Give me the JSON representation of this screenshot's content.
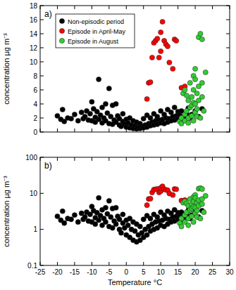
{
  "chart_data": [
    {
      "type": "scatter",
      "title": "a)",
      "y_label": "concentration µg m⁻³",
      "marker": "circle",
      "legend": "upper left",
      "tick_labels": "y",
      "xlim": [
        -25,
        30
      ],
      "xticks": [
        -25,
        -20,
        -15,
        -10,
        -5,
        0,
        5,
        10,
        15,
        20,
        25,
        30
      ],
      "ylim": [
        0,
        18
      ],
      "yticks": [
        0,
        2,
        4,
        6,
        8,
        10,
        12,
        14,
        16,
        18
      ],
      "series": [
        {
          "name": "Non-episodic period",
          "color": "#000000",
          "x": [
            -20,
            -19,
            -18.5,
            -18,
            -17,
            -16,
            -15,
            -14,
            -13,
            -12.5,
            -12,
            -11.5,
            -11,
            -10.5,
            -10,
            -10,
            -9.5,
            -9,
            -9,
            -8.5,
            -8,
            -8,
            -7.5,
            -7,
            -7,
            -6.5,
            -6,
            -6,
            -5.5,
            -5,
            -5,
            -4.5,
            -4,
            -4,
            -3.5,
            -3,
            -3,
            -2.5,
            -2,
            -2,
            -1.5,
            -1,
            -1,
            -0.5,
            0,
            0,
            0.5,
            1,
            1,
            1.5,
            2,
            2,
            2.5,
            3,
            3,
            3.5,
            4,
            4,
            4.5,
            5,
            5,
            5.5,
            6,
            6,
            6.5,
            7,
            7,
            7.5,
            8,
            8,
            8.5,
            9,
            9,
            9.5,
            10,
            10,
            10.5,
            11,
            11,
            11.5,
            12,
            12,
            12.5,
            13,
            13,
            13.5,
            14,
            14,
            14.5,
            15,
            15,
            15.5,
            16,
            16,
            17,
            17.5,
            18,
            18.5,
            19,
            20,
            21,
            22
          ],
          "values": [
            2.3,
            1.8,
            3.2,
            1.5,
            2.0,
            1.9,
            2.5,
            1.6,
            2.8,
            1.9,
            2.2,
            3.0,
            1.7,
            2.6,
            4.3,
            1.6,
            3.3,
            2.1,
            1.4,
            2.9,
            7.5,
            1.8,
            2.4,
            3.5,
            1.3,
            2.0,
            4.0,
            1.6,
            2.7,
            6.2,
            1.2,
            2.2,
            3.8,
            1.1,
            1.7,
            4.0,
            1.4,
            2.3,
            1.0,
            1.9,
            0.8,
            1.5,
            2.6,
            1.1,
            0.7,
            1.8,
            1.3,
            0.6,
            2.0,
            1.0,
            0.5,
            1.6,
            0.9,
            0.45,
            1.4,
            0.7,
            0.5,
            1.2,
            0.8,
            0.6,
            1.9,
            1.0,
            0.7,
            2.4,
            1.2,
            0.9,
            2.0,
            1.4,
            1.0,
            2.6,
            1.6,
            1.1,
            2.2,
            1.7,
            1.3,
            3.0,
            1.8,
            1.2,
            2.5,
            2.0,
            1.4,
            3.2,
            1.9,
            1.6,
            2.8,
            2.2,
            1.7,
            3.5,
            2.3,
            1.9,
            2.9,
            2.4,
            1.8,
            3.0,
            2.1,
            2.6,
            3.4,
            2.0,
            2.5,
            3.0,
            2.2,
            3.3
          ]
        },
        {
          "name": "Episode in April-May",
          "color": "#ff0000",
          "x": [
            6,
            6.5,
            7,
            7.5,
            8,
            8.5,
            9,
            9.5,
            10,
            10,
            10.5,
            11,
            11.5,
            12,
            12.5,
            13.5,
            14,
            14.5,
            16,
            17
          ],
          "values": [
            4.7,
            7.0,
            7.1,
            10.6,
            12.7,
            13.0,
            13.3,
            10.6,
            11.5,
            14.2,
            15.7,
            13.0,
            12.5,
            12.2,
            9.9,
            9.0,
            13.2,
            13.0,
            6.3,
            6.5
          ]
        },
        {
          "name": "Episode in August",
          "color": "#33cc33",
          "x": [
            15.5,
            16,
            16,
            16.5,
            17,
            17,
            17,
            17.5,
            17.5,
            18,
            18,
            18,
            18.5,
            18.5,
            19,
            19,
            19,
            19.5,
            19.5,
            19.5,
            19.5,
            20,
            20,
            20,
            20,
            20.5,
            20.5,
            20.5,
            21,
            21,
            21,
            21.5,
            21.5,
            22,
            22,
            22,
            22.5,
            23
          ],
          "values": [
            1.5,
            1.2,
            2.0,
            5.5,
            6.0,
            2.5,
            1.6,
            3.0,
            5.2,
            4.5,
            1.3,
            2.0,
            3.5,
            7.0,
            5.0,
            3.8,
            2.3,
            8.0,
            6.0,
            4.2,
            1.6,
            9.0,
            7.5,
            4.0,
            2.8,
            5.5,
            3.3,
            2.2,
            13.5,
            6.5,
            4.5,
            14.0,
            2.0,
            13.2,
            7.0,
            5.0,
            3.0,
            8.5
          ]
        }
      ]
    },
    {
      "type": "scatter",
      "title": "b)",
      "x_label": "Temperature °C",
      "y_label": "concentration µg m⁻³",
      "marker": "circle",
      "log": "y",
      "xlim": [
        -25,
        30
      ],
      "xticks": [
        -25,
        -20,
        -15,
        -10,
        -5,
        0,
        5,
        10,
        15,
        20,
        25,
        30
      ],
      "ylim": [
        0.1,
        100
      ],
      "yticks": [
        0.1,
        1,
        10,
        100
      ],
      "series": [
        {
          "color": "#000000",
          "x": [
            -20,
            -19,
            -18.5,
            -18,
            -17,
            -16,
            -15,
            -14,
            -13,
            -12.5,
            -12,
            -11.5,
            -11,
            -10.5,
            -10,
            -10,
            -9.5,
            -9,
            -9,
            -8.5,
            -8,
            -8,
            -7.5,
            -7,
            -7,
            -6.5,
            -6,
            -6,
            -5.5,
            -5,
            -5,
            -4.5,
            -4,
            -4,
            -3.5,
            -3,
            -3,
            -2.5,
            -2,
            -2,
            -1.5,
            -1,
            -1,
            -0.5,
            0,
            0,
            0.5,
            1,
            1,
            1.5,
            2,
            2,
            2.5,
            3,
            3,
            3.5,
            4,
            4,
            4.5,
            5,
            5,
            5.5,
            6,
            6,
            6.5,
            7,
            7,
            7.5,
            8,
            8,
            8.5,
            9,
            9,
            9.5,
            10,
            10,
            10.5,
            11,
            11,
            11.5,
            12,
            12,
            12.5,
            13,
            13,
            13.5,
            14,
            14,
            14.5,
            15,
            15,
            15.5,
            16,
            16,
            17,
            17.5,
            18,
            18.5,
            19,
            20,
            21,
            22
          ],
          "values": [
            2.3,
            1.8,
            3.2,
            1.5,
            2.0,
            1.9,
            2.5,
            1.6,
            2.8,
            1.9,
            2.2,
            3.0,
            1.7,
            2.6,
            4.3,
            1.6,
            3.3,
            2.1,
            1.4,
            2.9,
            7.5,
            1.8,
            2.4,
            3.5,
            1.3,
            2.0,
            4.0,
            1.6,
            2.7,
            6.2,
            1.2,
            2.2,
            3.8,
            1.1,
            1.7,
            4.0,
            1.4,
            2.3,
            1.0,
            1.9,
            0.8,
            1.5,
            2.6,
            1.1,
            0.7,
            1.8,
            1.3,
            0.6,
            2.0,
            1.0,
            0.5,
            1.6,
            0.9,
            0.45,
            1.4,
            0.7,
            0.5,
            1.2,
            0.8,
            0.6,
            1.9,
            1.0,
            0.7,
            2.4,
            1.2,
            0.9,
            2.0,
            1.4,
            1.0,
            2.6,
            1.6,
            1.1,
            2.2,
            1.7,
            1.3,
            3.0,
            1.8,
            1.2,
            2.5,
            2.0,
            1.4,
            3.2,
            1.9,
            1.6,
            2.8,
            2.2,
            1.7,
            3.5,
            2.3,
            1.9,
            2.9,
            2.4,
            1.8,
            3.0,
            2.1,
            2.6,
            3.4,
            2.0,
            2.5,
            3.0,
            2.2,
            3.3
          ]
        },
        {
          "color": "#ff0000",
          "x": [
            6,
            6.5,
            7,
            7.5,
            8,
            8.5,
            9,
            9.5,
            10,
            10,
            10.5,
            11,
            11.5,
            12,
            12.5,
            13.5,
            14,
            14.5,
            16,
            17
          ],
          "values": [
            4.7,
            7.0,
            7.1,
            10.6,
            12.7,
            13.0,
            13.3,
            10.6,
            11.5,
            14.2,
            15.7,
            13.0,
            12.5,
            12.2,
            9.9,
            9.0,
            13.2,
            13.0,
            6.3,
            6.5
          ]
        },
        {
          "color": "#33cc33",
          "x": [
            15.5,
            16,
            16,
            16.5,
            17,
            17,
            17,
            17.5,
            17.5,
            18,
            18,
            18,
            18.5,
            18.5,
            19,
            19,
            19,
            19.5,
            19.5,
            19.5,
            19.5,
            20,
            20,
            20,
            20,
            20.5,
            20.5,
            20.5,
            21,
            21,
            21,
            21.5,
            21.5,
            22,
            22,
            22,
            22.5,
            23
          ],
          "values": [
            1.5,
            1.2,
            2.0,
            5.5,
            6.0,
            2.5,
            1.6,
            3.0,
            5.2,
            4.5,
            1.3,
            2.0,
            3.5,
            7.0,
            5.0,
            3.8,
            2.3,
            8.0,
            6.0,
            4.2,
            1.6,
            9.0,
            7.5,
            4.0,
            2.8,
            5.5,
            3.3,
            2.2,
            13.5,
            6.5,
            4.5,
            14.0,
            2.0,
            13.2,
            7.0,
            5.0,
            3.0,
            8.5
          ]
        }
      ]
    }
  ]
}
